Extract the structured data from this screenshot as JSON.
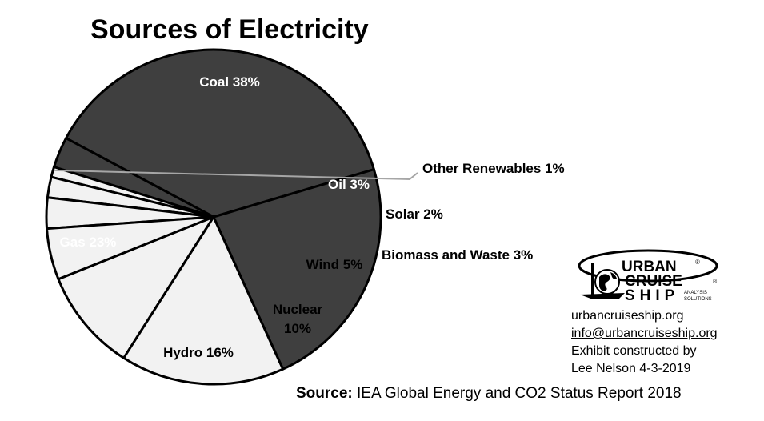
{
  "chart_data": {
    "type": "pie",
    "title": "Sources of Electricity",
    "slices": [
      {
        "name": "Coal",
        "value": 38,
        "label": "Coal 38%"
      },
      {
        "name": "Oil",
        "value": 3,
        "label": "Oil 3%"
      },
      {
        "name": "Other Renewables",
        "value": 1,
        "label": "Other Renewables 1%"
      },
      {
        "name": "Solar",
        "value": 2,
        "label": "Solar 2%"
      },
      {
        "name": "Biomass and Waste",
        "value": 3,
        "label": "Biomass and Waste 3%"
      },
      {
        "name": "Wind",
        "value": 5,
        "label": "Wind 5%"
      },
      {
        "name": "Nuclear",
        "value": 10,
        "label": "Nuclear 10%"
      },
      {
        "name": "Hydro",
        "value": 16,
        "label": "Hydro 16%"
      },
      {
        "name": "Gas",
        "value": 23,
        "label": "Gas 23%"
      }
    ],
    "colors": {
      "fossil": "#3f3f3f",
      "other": "#f2f2f2",
      "outline": "#000000",
      "leader": "#a6a6a6"
    }
  },
  "info": {
    "website": "urbancruiseship.org",
    "email": "info@urbancruiseship.org",
    "credit_line1": "Exhibit constructed by",
    "credit_line2": "Lee Nelson 4-3-2019"
  },
  "source": {
    "label": "Source:",
    "text": "IEA Global Energy and CO2 Status Report 2018"
  },
  "logo": {
    "line1": "URBAN",
    "line2": "CRUISE",
    "line3": "SHIP",
    "tag1": "ANALYSIS",
    "tag2": "SOLUTIONS",
    "mark": "®"
  }
}
